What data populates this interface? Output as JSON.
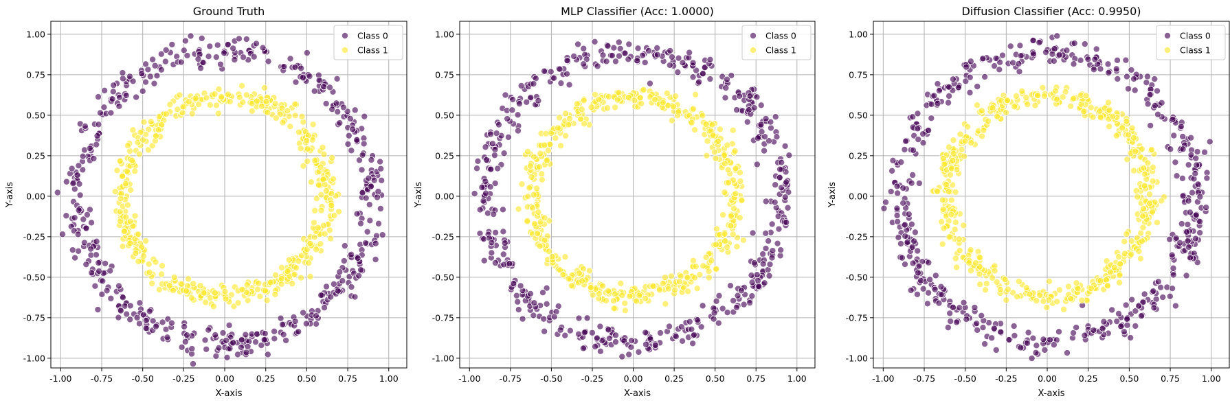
{
  "chart_data": [
    {
      "type": "scatter",
      "title": "Ground Truth",
      "xlabel": "X-axis",
      "ylabel": "Y-axis",
      "xlim": [
        -1.06,
        1.11
      ],
      "ylim": [
        -1.06,
        1.08
      ],
      "xticks": [
        "-1.00",
        "-0.75",
        "-0.50",
        "-0.25",
        "0.00",
        "0.25",
        "0.50",
        "0.75",
        "1.00"
      ],
      "yticks": [
        "-1.00",
        "-0.75",
        "-0.50",
        "-0.25",
        "0.00",
        "0.25",
        "0.50",
        "0.75",
        "1.00"
      ],
      "grid": true,
      "legend_position": "top-right",
      "series": [
        {
          "name": "Class 0",
          "color": "#440154",
          "ring": {
            "r": 0.9,
            "noise": 0.045,
            "count": 500
          }
        },
        {
          "name": "Class 1",
          "color": "#fde725",
          "ring": {
            "r": 0.62,
            "noise": 0.035,
            "count": 500
          }
        }
      ],
      "extra_points": []
    },
    {
      "type": "scatter",
      "title": "MLP Classifier (Acc: 1.0000)",
      "xlabel": "X-axis",
      "ylabel": "Y-axis",
      "xlim": [
        -1.06,
        1.11
      ],
      "ylim": [
        -1.06,
        1.08
      ],
      "xticks": [
        "-1.00",
        "-0.75",
        "-0.50",
        "-0.25",
        "0.00",
        "0.25",
        "0.50",
        "0.75",
        "1.00"
      ],
      "yticks": [
        "-1.00",
        "-0.75",
        "-0.50",
        "-0.25",
        "0.00",
        "0.25",
        "0.50",
        "0.75",
        "1.00"
      ],
      "grid": true,
      "legend_position": "top-right",
      "series": [
        {
          "name": "Class 0",
          "color": "#440154",
          "ring": {
            "r": 0.9,
            "noise": 0.045,
            "count": 500
          }
        },
        {
          "name": "Class 1",
          "color": "#fde725",
          "ring": {
            "r": 0.62,
            "noise": 0.035,
            "count": 500
          }
        }
      ],
      "extra_points": []
    },
    {
      "type": "scatter",
      "title": "Diffusion Classifier (Acc: 0.9950)",
      "xlabel": "X-axis",
      "ylabel": "Y-axis",
      "xlim": [
        -1.06,
        1.11
      ],
      "ylim": [
        -1.06,
        1.08
      ],
      "xticks": [
        "-1.00",
        "-0.75",
        "-0.50",
        "-0.25",
        "0.00",
        "0.25",
        "0.50",
        "0.75",
        "1.00"
      ],
      "yticks": [
        "-1.00",
        "-0.75",
        "-0.50",
        "-0.25",
        "0.00",
        "0.25",
        "0.50",
        "0.75",
        "1.00"
      ],
      "grid": true,
      "legend_position": "top-right",
      "series": [
        {
          "name": "Class 0",
          "color": "#440154",
          "ring": {
            "r": 0.9,
            "noise": 0.045,
            "count": 500
          }
        },
        {
          "name": "Class 1",
          "color": "#fde725",
          "ring": {
            "r": 0.62,
            "noise": 0.035,
            "count": 500
          }
        }
      ],
      "extra_points": [
        {
          "series": "Class 0",
          "x": -0.66,
          "y": -0.66
        },
        {
          "series": "Class 0",
          "x": -0.78,
          "y": 0.08
        },
        {
          "series": "Class 1",
          "x": 0.41,
          "y": -0.44
        }
      ]
    }
  ]
}
